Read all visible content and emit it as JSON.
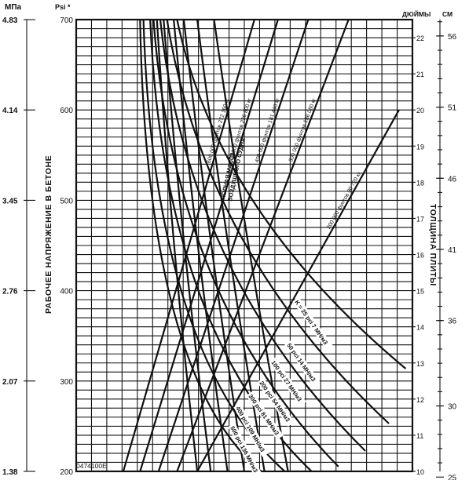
{
  "chart_data": {
    "type": "line",
    "title": "",
    "left_axis_mpa": {
      "unit": "МПа",
      "ticks": [
        "1.38",
        "2.07",
        "2.76",
        "3.45",
        "4.14",
        "4.83"
      ]
    },
    "left_axis_psi": {
      "unit": "Psi *",
      "ticks": [
        "200",
        "300",
        "400",
        "500",
        "600",
        "700"
      ],
      "range": [
        200,
        700
      ]
    },
    "ylabel": "РАБОЧЕЕ НАПРЯЖЕНИЕ В БЕТОНЕ",
    "right_axis_inches": {
      "unit": "ДЮЙМЫ",
      "ticks": [
        "10",
        "11",
        "12",
        "13",
        "14",
        "15",
        "16",
        "17",
        "18",
        "19",
        "20",
        "21",
        "22"
      ],
      "range": [
        10,
        22.5
      ]
    },
    "right_axis_cm": {
      "unit": "СМ",
      "ticks": [
        "25",
        "30",
        "36",
        "41",
        "46",
        "51",
        "56"
      ]
    },
    "right_label": "ТОЛЩИНА ПЛИТЫ",
    "code": "0474100E",
    "mass_label_line1": "ПОЛНАЯ МАССА",
    "mass_label_line2": "ВОЗДУШНОГО СУДНА",
    "load_series": [
      {
        "name": "200 000 фунтов 90 720 кг",
        "points": [
          [
            0.36,
            200
          ],
          [
            0.96,
            600
          ]
        ]
      },
      {
        "name": "300 000 фунтов 136 080 кг",
        "points": [
          [
            0.3,
            200
          ],
          [
            0.81,
            700
          ]
        ]
      },
      {
        "name": "400 000 фунтов 181 440 кг",
        "points": [
          [
            0.245,
            200
          ],
          [
            0.69,
            700
          ]
        ]
      },
      {
        "name": "500 000 фунтов 226 800 кг",
        "points": [
          [
            0.19,
            200
          ],
          [
            0.6,
            700
          ]
        ]
      },
      {
        "name": "600 000 фунтов 272 160 кг",
        "points": [
          [
            0.14,
            200
          ],
          [
            0.53,
            700
          ]
        ]
      }
    ],
    "k_series": [
      {
        "name": "K = 25 pci 7 МН/м3"
      },
      {
        "name": "50 pci 14 МН/м3"
      },
      {
        "name": "100 pci 27 МН/м3"
      },
      {
        "name": "200 pci 54 МН/м3"
      },
      {
        "name": "300 pci 81 МН/м3"
      },
      {
        "name": "400 pci 109 МН/м3"
      },
      {
        "name": "500 pci 136 МН/м3"
      }
    ]
  }
}
